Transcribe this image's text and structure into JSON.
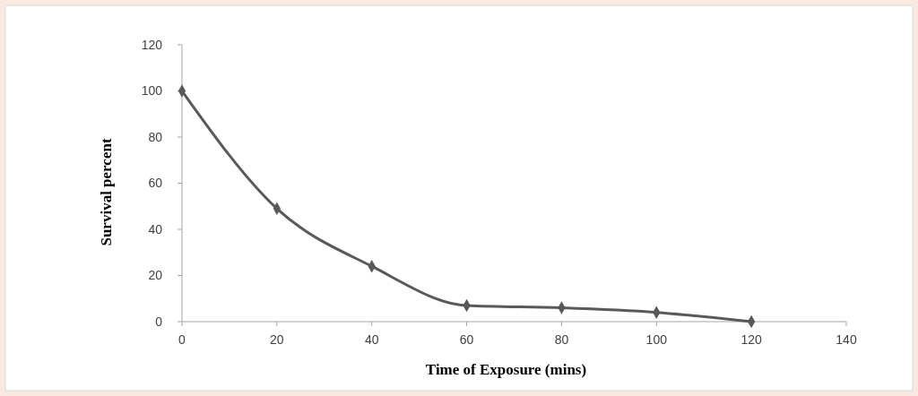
{
  "chart_data": {
    "type": "line",
    "xlabel": "Time of Exposure (mins)",
    "ylabel": "Survival percent",
    "x": [
      0,
      20,
      40,
      60,
      80,
      100,
      120
    ],
    "series": [
      {
        "color": "#595959",
        "values": [
          100,
          49,
          24,
          7,
          6,
          4,
          0
        ]
      }
    ],
    "xlim": [
      0,
      140
    ],
    "xticks": [
      0,
      20,
      40,
      60,
      80,
      100,
      120,
      140
    ],
    "ylim": [
      0,
      120
    ],
    "yticks": [
      0,
      20,
      40,
      60,
      80,
      100,
      120
    ],
    "grid": false,
    "marker": "diamond",
    "line_style": "solid"
  }
}
